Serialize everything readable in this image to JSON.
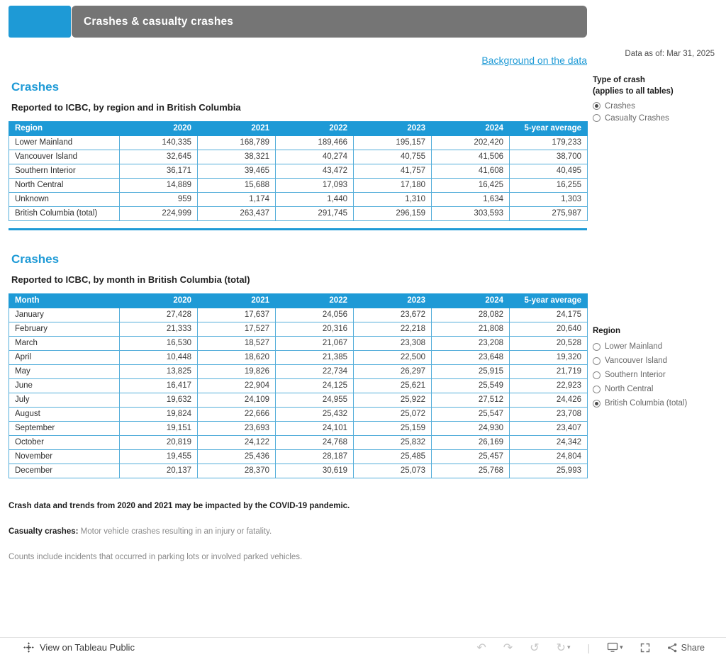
{
  "banner": {
    "title": "Crashes & casualty crashes"
  },
  "meta": {
    "background_link": "Background on the data",
    "data_as_of": "Data as of: Mar 31, 2025"
  },
  "filters": {
    "type_of_crash": {
      "title": "Type of crash",
      "subtitle": "(applies to all tables)",
      "options": [
        {
          "label": "Crashes",
          "selected": true
        },
        {
          "label": "Casualty Crashes",
          "selected": false
        }
      ]
    },
    "region": {
      "title": "Region",
      "options": [
        {
          "label": "Lower Mainland",
          "selected": false
        },
        {
          "label": "Vancouver Island",
          "selected": false
        },
        {
          "label": "Southern Interior",
          "selected": false
        },
        {
          "label": "North Central",
          "selected": false
        },
        {
          "label": "British Columbia (total)",
          "selected": true
        }
      ]
    }
  },
  "table1": {
    "heading": "Crashes",
    "subtitle": "Reported to ICBC, by region and in British Columbia",
    "columns": [
      "Region",
      "2020",
      "2021",
      "2022",
      "2023",
      "2024",
      "5-year average"
    ],
    "rows": [
      [
        "Lower Mainland",
        "140,335",
        "168,789",
        "189,466",
        "195,157",
        "202,420",
        "179,233"
      ],
      [
        "Vancouver Island",
        "32,645",
        "38,321",
        "40,274",
        "40,755",
        "41,506",
        "38,700"
      ],
      [
        "Southern Interior",
        "36,171",
        "39,465",
        "43,472",
        "41,757",
        "41,608",
        "40,495"
      ],
      [
        "North Central",
        "14,889",
        "15,688",
        "17,093",
        "17,180",
        "16,425",
        "16,255"
      ],
      [
        "Unknown",
        "959",
        "1,174",
        "1,440",
        "1,310",
        "1,634",
        "1,303"
      ],
      [
        "British Columbia (total)",
        "224,999",
        "263,437",
        "291,745",
        "296,159",
        "303,593",
        "275,987"
      ]
    ]
  },
  "table2": {
    "heading": "Crashes",
    "subtitle": "Reported to ICBC, by month in British Columbia (total)",
    "columns": [
      "Month",
      "2020",
      "2021",
      "2022",
      "2023",
      "2024",
      "5-year average"
    ],
    "rows": [
      [
        "January",
        "27,428",
        "17,637",
        "24,056",
        "23,672",
        "28,082",
        "24,175"
      ],
      [
        "February",
        "21,333",
        "17,527",
        "20,316",
        "22,218",
        "21,808",
        "20,640"
      ],
      [
        "March",
        "16,530",
        "18,527",
        "21,067",
        "23,308",
        "23,208",
        "20,528"
      ],
      [
        "April",
        "10,448",
        "18,620",
        "21,385",
        "22,500",
        "23,648",
        "19,320"
      ],
      [
        "May",
        "13,825",
        "19,826",
        "22,734",
        "26,297",
        "25,915",
        "21,719"
      ],
      [
        "June",
        "16,417",
        "22,904",
        "24,125",
        "25,621",
        "25,549",
        "22,923"
      ],
      [
        "July",
        "19,632",
        "24,109",
        "24,955",
        "25,922",
        "27,512",
        "24,426"
      ],
      [
        "August",
        "19,824",
        "22,666",
        "25,432",
        "25,072",
        "25,547",
        "23,708"
      ],
      [
        "September",
        "19,151",
        "23,693",
        "24,101",
        "25,159",
        "24,930",
        "23,407"
      ],
      [
        "October",
        "20,819",
        "24,122",
        "24,768",
        "25,832",
        "26,169",
        "24,342"
      ],
      [
        "November",
        "19,455",
        "25,436",
        "28,187",
        "25,485",
        "25,457",
        "24,804"
      ],
      [
        "December",
        "20,137",
        "28,370",
        "30,619",
        "25,073",
        "25,768",
        "25,993"
      ]
    ]
  },
  "notes": {
    "covid": "Crash data and trends from 2020 and 2021 may be impacted by the COVID-19 pandemic.",
    "casualty_bold": "Casualty crashes:",
    "casualty_rest": " Motor vehicle crashes resulting in an injury or fatality.",
    "parking": "Counts include incidents that occurred in parking lots or involved parked vehicles."
  },
  "toolbar": {
    "view_label": "View on Tableau Public",
    "share_label": "Share",
    "undo_glyph": "↶",
    "redo_glyph": "↷",
    "revert_glyph": "↺",
    "refresh_glyph": "↻",
    "caret_glyph": "▾",
    "separator_glyph": "|"
  },
  "colors": {
    "accent_blue": "#1e9ad6",
    "banner_gray": "#757575"
  }
}
